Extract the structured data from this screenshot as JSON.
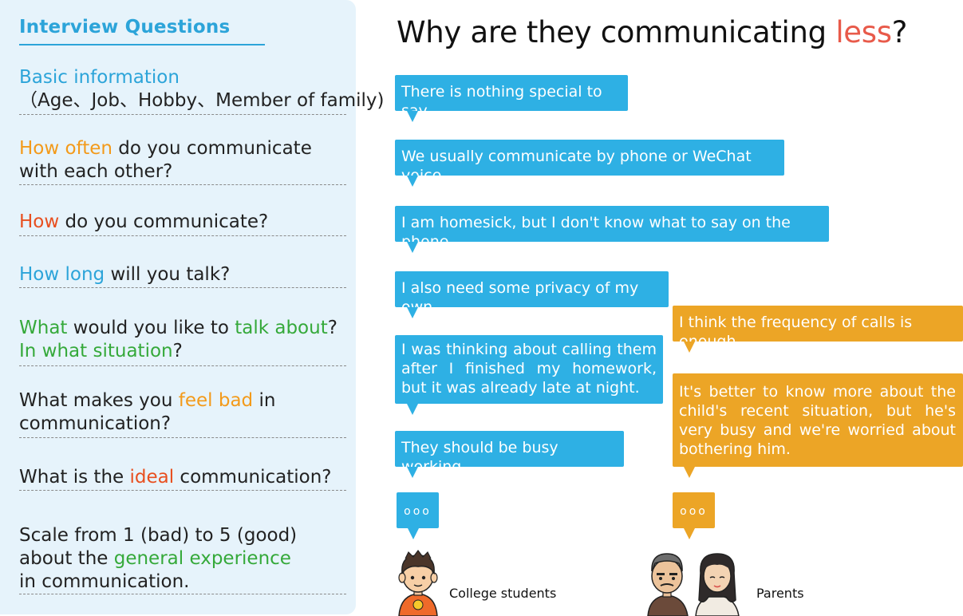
{
  "panel": {
    "title": "Interview Questions",
    "questions": [
      {
        "a": "Basic information",
        "b": "（Age、Job、Hobby、Member of family)"
      },
      {
        "a": "How often",
        "b": " do you communicate",
        "c": "with each other?"
      },
      {
        "a": "How",
        "b": " do you communicate?"
      },
      {
        "a": "How long",
        "b": " will you talk?"
      },
      {
        "a": "What",
        "b": " would you like to ",
        "c": "talk about",
        "d": "?",
        "e": "In what situation",
        "f": "?"
      },
      {
        "a": "What makes you ",
        "b": "feel bad",
        "c": " in",
        "d": "communication?"
      },
      {
        "a": "What is the ",
        "b": "ideal",
        "c": " communication?"
      },
      {
        "a": "Scale from 1 (bad)  to 5 (good)",
        "b": "about the ",
        "c": "general experience",
        "d": "in communication."
      }
    ]
  },
  "heading": {
    "prefix": "Why are they communicating ",
    "highlight": "less",
    "suffix": "?"
  },
  "students_bubbles": [
    "There is nothing special to say.",
    "We usually communicate by phone or WeChat voice.",
    "I am homesick, but I don't know what to say on the phone.",
    "I also need some privacy of my own.",
    "I was thinking about calling them after I finished my homework, but it was already late at night.",
    "They should be busy working."
  ],
  "parents_bubbles": [
    "I think the frequency of calls is enough.",
    "It's better to know more about the child's recent situation, but he's very busy and we're worried about bothering him."
  ],
  "ellipsis": "ooo",
  "labels": {
    "students": "College students",
    "parents": "Parents"
  },
  "colors": {
    "blue": "#2eb0e4",
    "orange": "#eca526",
    "accent_red": "#e85a4a",
    "green": "#35a93a",
    "panel_bg": "#e6f3fb"
  }
}
